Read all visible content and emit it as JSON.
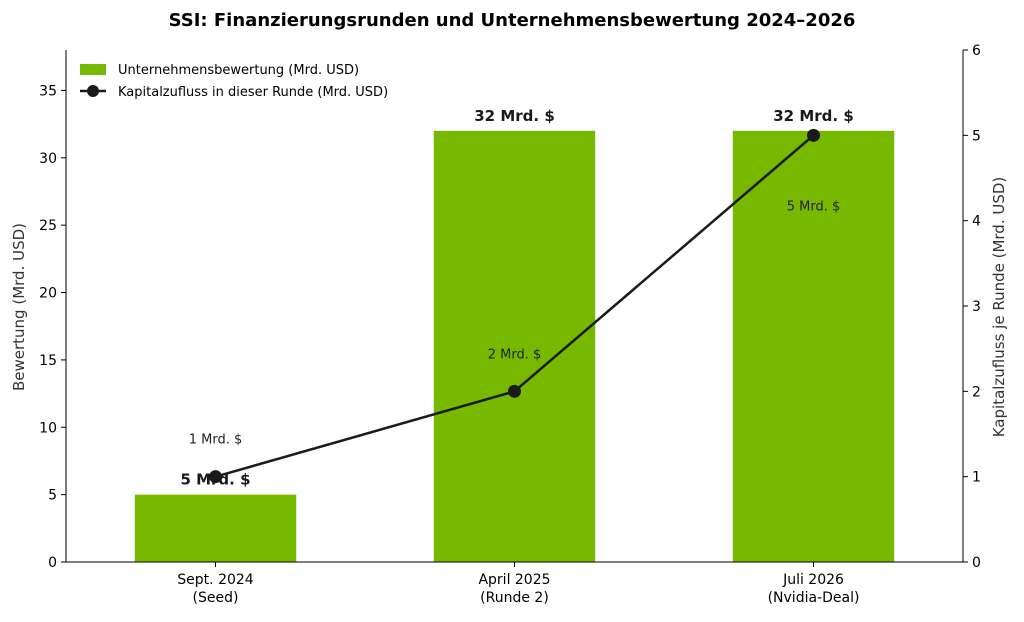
{
  "chart_data": {
    "type": "bar",
    "title": "SSI: Finanzierungsrunden und Unternehmensbewertung 2024–2026",
    "categories": [
      {
        "line1": "Sept. 2024",
        "line2": "(Seed)"
      },
      {
        "line1": "April 2025",
        "line2": "(Runde 2)"
      },
      {
        "line1": "Juli 2026",
        "line2": "(Nvidia-Deal)"
      }
    ],
    "ylabel_left": "Bewertung (Mrd. USD)",
    "ylabel_right": "Kapitalzufluss je Runde (Mrd. USD)",
    "ylim_left": [
      0,
      38
    ],
    "ylim_right": [
      0,
      6
    ],
    "yticks_left": [
      "0",
      "5",
      "10",
      "15",
      "20",
      "25",
      "30",
      "35"
    ],
    "yticks_right": [
      "0",
      "1",
      "2",
      "3",
      "4",
      "5",
      "6"
    ],
    "series": [
      {
        "name": "Unternehmensbewertung (Mrd. USD)",
        "kind": "bar",
        "axis": "left",
        "color": "#76b900",
        "values": [
          5,
          32,
          32
        ],
        "labels": [
          "5 Mrd. $",
          "32 Mrd. $",
          "32 Mrd. $"
        ]
      },
      {
        "name": "Kapitalzufluss in dieser Runde (Mrd. USD)",
        "kind": "line",
        "axis": "right",
        "color": "#1a1a1a",
        "values": [
          1,
          2,
          5
        ],
        "labels": [
          "1 Mrd. $",
          "2 Mrd. $",
          "5 Mrd. $"
        ]
      }
    ],
    "legend": "top-left",
    "grid": false
  }
}
